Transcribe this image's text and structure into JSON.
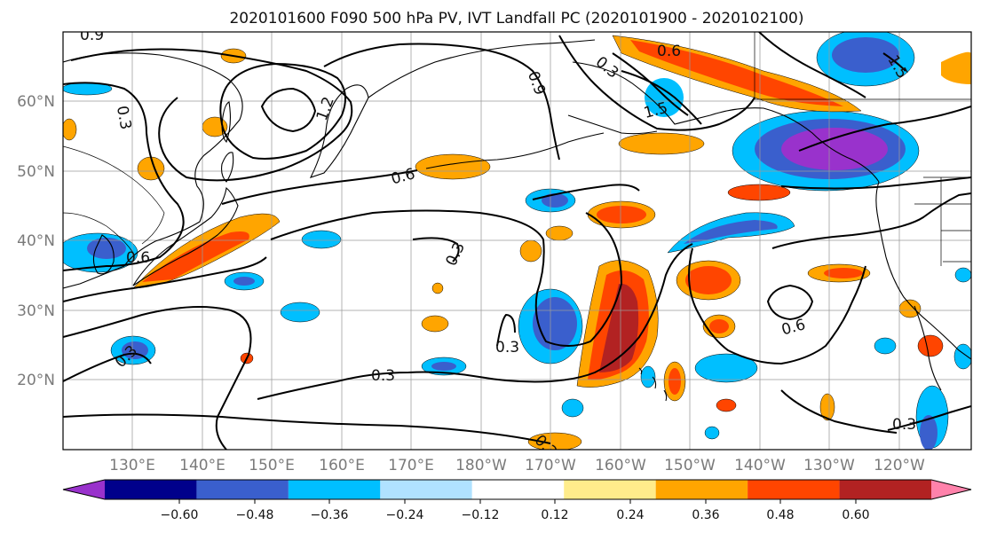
{
  "title": "2020101600 F090 500 hPa PV, IVT Landfall PC (2020101900 - 2020102100)",
  "lat_labels": [
    "60°N",
    "50°N",
    "40°N",
    "30°N",
    "20°N"
  ],
  "lon_labels": [
    "130°E",
    "140°E",
    "150°E",
    "160°E",
    "170°E",
    "180°W",
    "170°W",
    "160°W",
    "150°W",
    "140°W",
    "130°W",
    "120°W"
  ],
  "colorbar": {
    "tick_labels": [
      "−0.60",
      "−0.48",
      "−0.36",
      "−0.24",
      "−0.12",
      "0.12",
      "0.24",
      "0.36",
      "0.48",
      "0.60"
    ],
    "colors": [
      "#9932cc",
      "#00008b",
      "#3a5fcd",
      "#00bfff",
      "#b0e2ff",
      "#ffffff",
      "#ffec8b",
      "#ffa500",
      "#ff4500",
      "#b22222",
      "#ff82ab"
    ]
  },
  "contour_labels": [
    "0.9",
    "0.6",
    "0.9",
    "0.3",
    "1.2",
    "1.5",
    "0.3",
    "0.6",
    "0.6",
    "0.3",
    "0.3",
    "0.3",
    "0.6",
    "0.3",
    "0.3",
    "0.3",
    "1.5"
  ]
}
